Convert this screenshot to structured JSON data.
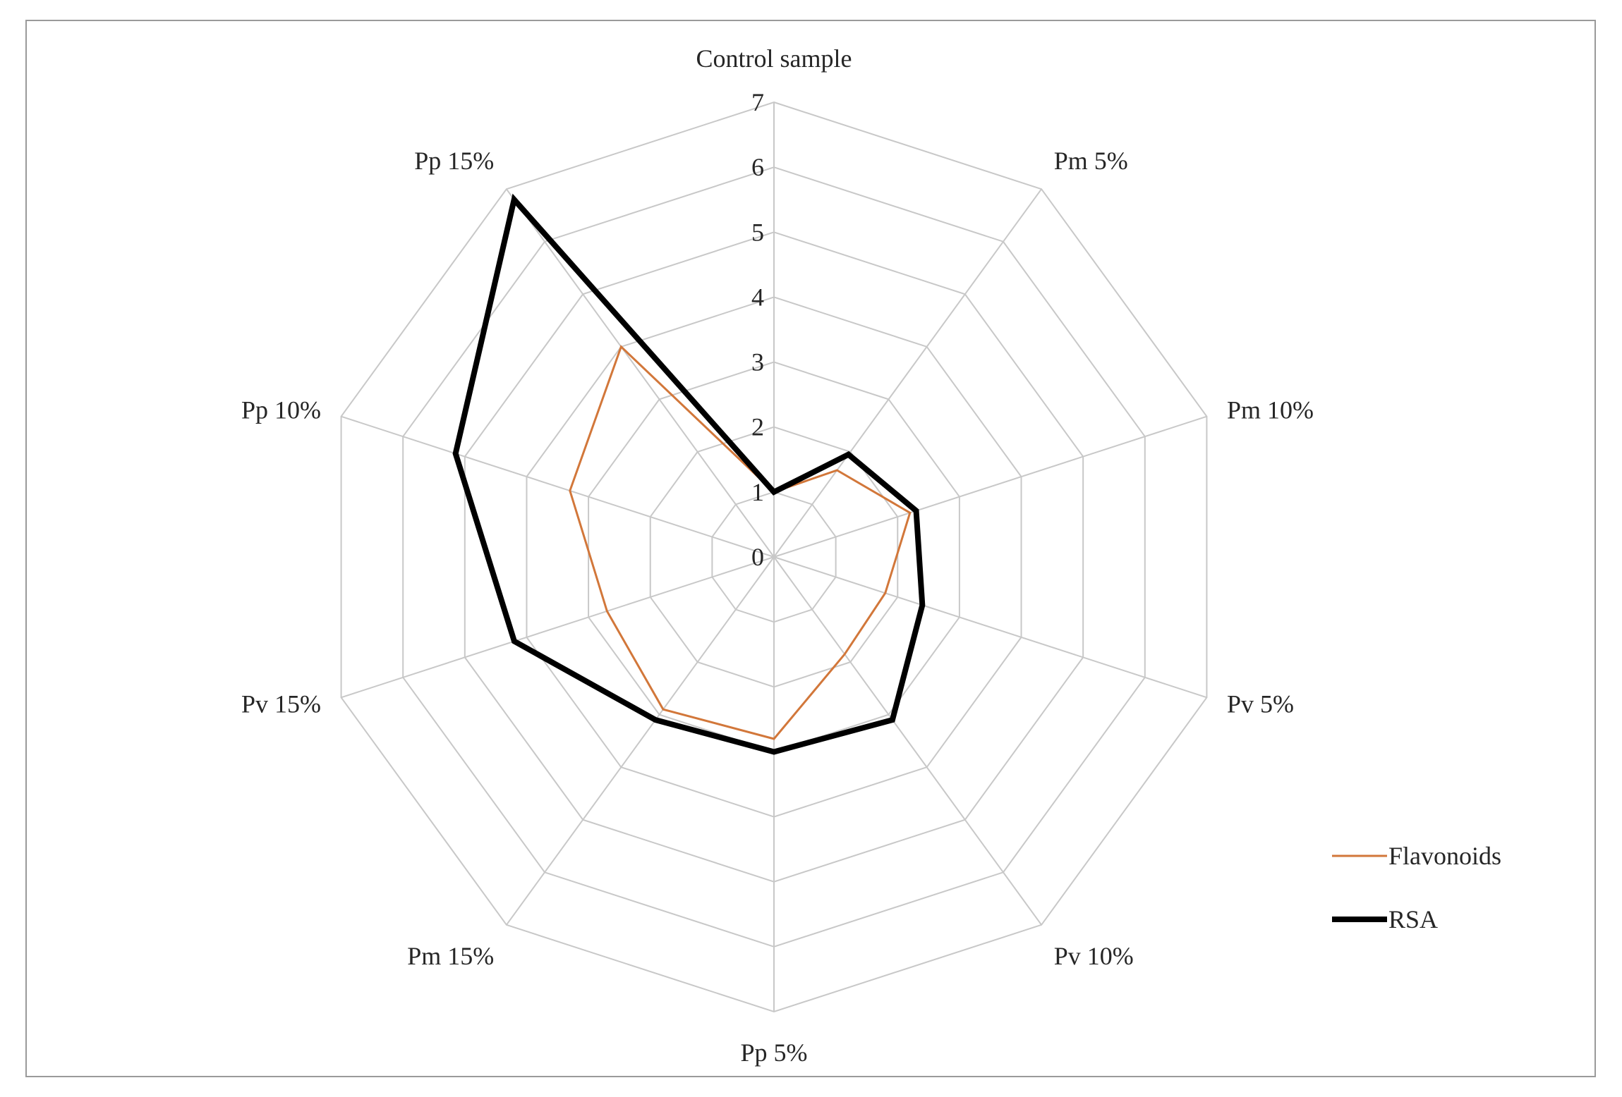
{
  "chart_data": {
    "type": "radar",
    "title": "",
    "categories": [
      "Control sample",
      "Pm 5%",
      "Pm 10%",
      "Pv 5%",
      "Pv 10%",
      "Pp 5%",
      "Pm 15%",
      "Pv 15%",
      "Pp 10%",
      "Pp 15%"
    ],
    "rlim": [
      0,
      7
    ],
    "ticks": [
      "0",
      "1",
      "2",
      "3",
      "4",
      "5",
      "6",
      "7"
    ],
    "grid": true,
    "legend": "right",
    "series": [
      {
        "name": "Flavonoids",
        "color": "#d2773a",
        "values": [
          1.0,
          1.65,
          2.2,
          1.8,
          1.85,
          2.8,
          2.9,
          2.7,
          3.3,
          4.0
        ]
      },
      {
        "name": "RSA",
        "color": "#000000",
        "values": [
          1.0,
          1.95,
          2.3,
          2.4,
          3.1,
          3.0,
          3.1,
          4.2,
          5.15,
          6.8
        ]
      }
    ]
  }
}
